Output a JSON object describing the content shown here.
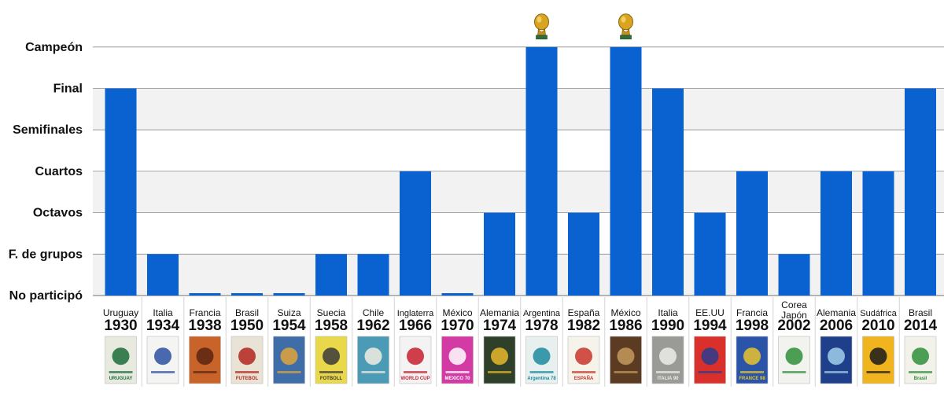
{
  "chart_data": {
    "type": "bar",
    "title": "",
    "xlabel": "",
    "ylabel": "",
    "y_levels": [
      "No participó",
      "F. de grupos",
      "Octavos",
      "Cuartos",
      "Semifinales",
      "Final",
      "Campeón"
    ],
    "ylim": [
      0,
      6
    ],
    "grid": true,
    "categories": [
      {
        "country": "Uruguay",
        "year": "1930"
      },
      {
        "country": "Italia",
        "year": "1934"
      },
      {
        "country": "Francia",
        "year": "1938"
      },
      {
        "country": "Brasil",
        "year": "1950"
      },
      {
        "country": "Suiza",
        "year": "1954"
      },
      {
        "country": "Suecia",
        "year": "1958"
      },
      {
        "country": "Chile",
        "year": "1962"
      },
      {
        "country": "Inglaterra",
        "year": "1966"
      },
      {
        "country": "México",
        "year": "1970"
      },
      {
        "country": "Alemania",
        "year": "1974"
      },
      {
        "country": "Argentina",
        "year": "1978"
      },
      {
        "country": "España",
        "year": "1982"
      },
      {
        "country": "México",
        "year": "1986"
      },
      {
        "country": "Italia",
        "year": "1990"
      },
      {
        "country": "EE.UU",
        "year": "1994"
      },
      {
        "country": "Francia",
        "year": "1998"
      },
      {
        "country": "Corea Japón",
        "year": "2002"
      },
      {
        "country": "Alemania",
        "year": "2006"
      },
      {
        "country": "Sudáfrica",
        "year": "2010"
      },
      {
        "country": "Brasil",
        "year": "2014"
      }
    ],
    "values": [
      5,
      1,
      0,
      0,
      0,
      1,
      1,
      3,
      0,
      2,
      6,
      2,
      6,
      5,
      2,
      3,
      1,
      3,
      3,
      5
    ],
    "bar_color": "#0a62d0",
    "band_color": "#f2f2f2",
    "grid_color": "#8c8c8c",
    "champion_marker": "world-cup-trophy-icon",
    "posters": [
      {
        "text": "URUGUAY",
        "bg": "#e8eadf",
        "fg": "#1a6c3a"
      },
      {
        "text": "",
        "bg": "#f4f4f2",
        "fg": "#2b4fa2"
      },
      {
        "text": "",
        "bg": "#c8642a",
        "fg": "#5a2410"
      },
      {
        "text": "FUTEBOL",
        "bg": "#e9e3d6",
        "fg": "#b2261f"
      },
      {
        "text": "",
        "bg": "#3f6da8",
        "fg": "#e2a53b"
      },
      {
        "text": "FOTBOLL",
        "bg": "#e8d84a",
        "fg": "#3a3a3a"
      },
      {
        "text": "",
        "bg": "#4c9bb6",
        "fg": "#f2ede2"
      },
      {
        "text": "WORLD CUP",
        "bg": "#f3f3f3",
        "fg": "#c81f2d"
      },
      {
        "text": "MEXICO 70",
        "bg": "#d33aa3",
        "fg": "#ffffff"
      },
      {
        "text": "",
        "bg": "#2e3f2a",
        "fg": "#e7b92b"
      },
      {
        "text": "Argentina 78",
        "bg": "#e8efef",
        "fg": "#1c8aa0"
      },
      {
        "text": "ESPAÑA",
        "bg": "#f6f3ea",
        "fg": "#c8342a"
      },
      {
        "text": "",
        "bg": "#5b3b22",
        "fg": "#c49a5a"
      },
      {
        "text": "ITALIA 90",
        "bg": "#9a9a96",
        "fg": "#ececec"
      },
      {
        "text": "",
        "bg": "#d9302c",
        "fg": "#2a3c8c"
      },
      {
        "text": "FRANCE 98",
        "bg": "#2a54a8",
        "fg": "#e9c42e"
      },
      {
        "text": "",
        "bg": "#f2f2ee",
        "fg": "#2f8f3a"
      },
      {
        "text": "",
        "bg": "#1f3f8a",
        "fg": "#9fd0ea"
      },
      {
        "text": "",
        "bg": "#f0b51e",
        "fg": "#1a1a1a"
      },
      {
        "text": "Brasil",
        "bg": "#f2f2ea",
        "fg": "#2f8f3a"
      }
    ]
  }
}
